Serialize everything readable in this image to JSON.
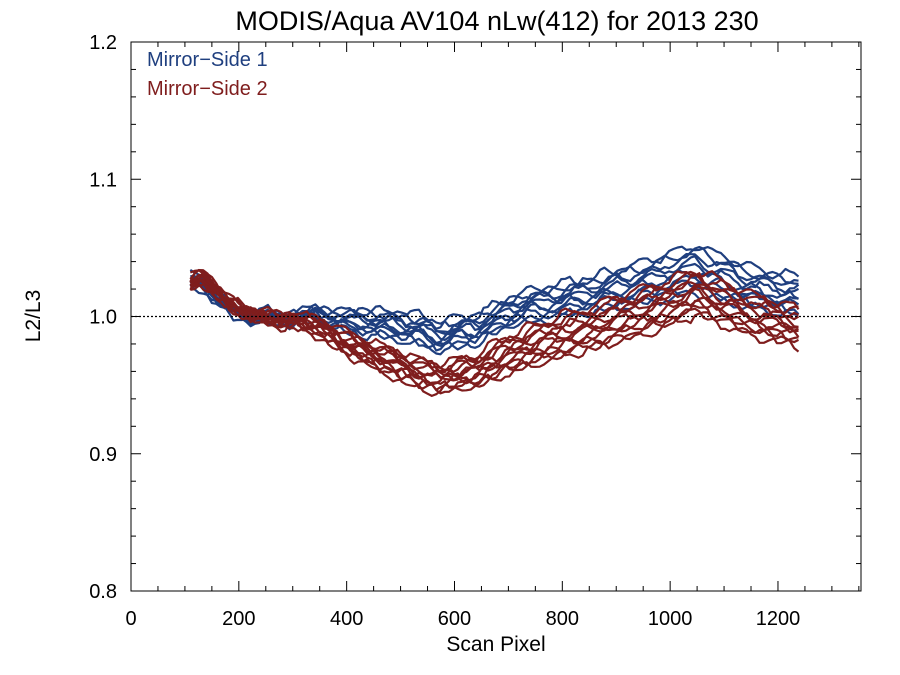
{
  "chart_data": {
    "type": "line",
    "title": "MODIS/Aqua AV104 nLw(412) for 2013 230",
    "xlabel": "Scan Pixel",
    "ylabel": "L2/L3",
    "xlim": [
      0,
      1354
    ],
    "ylim": [
      0.8,
      1.2
    ],
    "x_ticks": [
      "0",
      "200",
      "400",
      "600",
      "800",
      "1000",
      "1200"
    ],
    "y_ticks": [
      "0.8",
      "0.9",
      "1.0",
      "1.1",
      "1.2"
    ],
    "reference_line": 1.0,
    "grid": false,
    "legend": "top-left",
    "legend_entries": [
      {
        "label": "Mirror−Side 1",
        "color": "#1f3f7f"
      },
      {
        "label": "Mirror−Side 2",
        "color": "#7f1d1d"
      }
    ],
    "series": [
      {
        "name": "Mirror−Side 1",
        "color": "#1f3f7f",
        "line_count": 10,
        "x": [
          110,
          130,
          160,
          190,
          220,
          250,
          280,
          300,
          340,
          380,
          420,
          460,
          500,
          540,
          570,
          600,
          640,
          660,
          700,
          740,
          780,
          800,
          840,
          880,
          920,
          960,
          1000,
          1050,
          1080,
          1120,
          1160,
          1200,
          1240
        ],
        "y": [
          1.026,
          1.024,
          1.015,
          1.004,
          1.0,
          1.001,
          0.997,
          0.999,
          1.002,
          0.998,
          0.996,
          0.995,
          0.993,
          0.99,
          0.985,
          0.988,
          0.991,
          0.995,
          1.003,
          1.008,
          1.01,
          1.012,
          1.015,
          1.018,
          1.022,
          1.025,
          1.03,
          1.035,
          1.03,
          1.025,
          1.02,
          1.018,
          1.014
        ],
        "spread": [
          0.004,
          0.004,
          0.004,
          0.003,
          0.003,
          0.003,
          0.003,
          0.003,
          0.004,
          0.006,
          0.008,
          0.009,
          0.01,
          0.01,
          0.01,
          0.01,
          0.01,
          0.01,
          0.01,
          0.011,
          0.012,
          0.012,
          0.012,
          0.013,
          0.014,
          0.015,
          0.016,
          0.017,
          0.016,
          0.015,
          0.014,
          0.014,
          0.014
        ]
      },
      {
        "name": "Mirror−Side 2",
        "color": "#7f1d1d",
        "line_count": 12,
        "x": [
          110,
          130,
          160,
          190,
          220,
          250,
          280,
          300,
          340,
          380,
          420,
          460,
          500,
          540,
          570,
          600,
          640,
          660,
          700,
          740,
          780,
          800,
          840,
          880,
          920,
          960,
          1000,
          1050,
          1080,
          1120,
          1160,
          1200,
          1240
        ],
        "y": [
          1.024,
          1.03,
          1.018,
          1.008,
          1.002,
          1.0,
          0.996,
          0.998,
          0.993,
          0.985,
          0.977,
          0.97,
          0.964,
          0.958,
          0.955,
          0.958,
          0.96,
          0.965,
          0.972,
          0.978,
          0.983,
          0.986,
          0.99,
          0.995,
          1.0,
          1.005,
          1.01,
          1.018,
          1.012,
          1.006,
          1.0,
          0.996,
          0.992
        ],
        "spread": [
          0.004,
          0.004,
          0.004,
          0.003,
          0.003,
          0.003,
          0.004,
          0.004,
          0.005,
          0.007,
          0.008,
          0.009,
          0.01,
          0.01,
          0.01,
          0.01,
          0.011,
          0.012,
          0.013,
          0.014,
          0.015,
          0.015,
          0.015,
          0.016,
          0.016,
          0.016,
          0.016,
          0.016,
          0.016,
          0.015,
          0.015,
          0.014,
          0.013
        ]
      }
    ]
  }
}
